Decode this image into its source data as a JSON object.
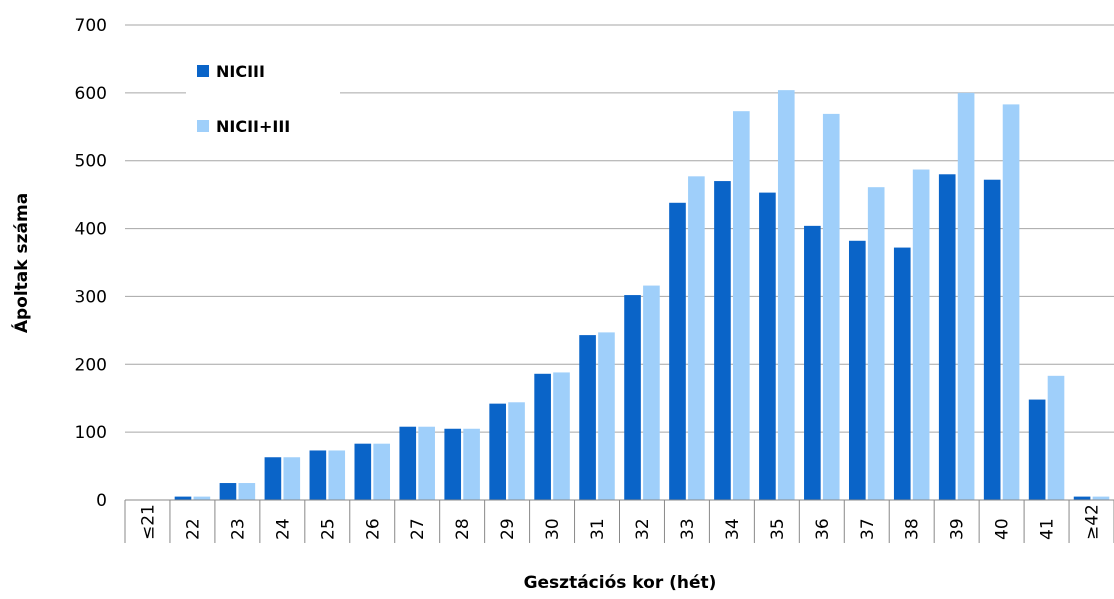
{
  "chart_data": {
    "type": "bar",
    "xlabel": "Gesztációs kor (hét)",
    "ylabel": "Ápoltak száma",
    "ylim": [
      0,
      700
    ],
    "yticks": [
      "0",
      "100",
      "200",
      "300",
      "400",
      "500",
      "600",
      "700"
    ],
    "grid": true,
    "legend_position": "top-left",
    "categories": [
      "≤21",
      "22",
      "23",
      "24",
      "25",
      "26",
      "27",
      "28",
      "29",
      "30",
      "31",
      "32",
      "33",
      "34",
      "35",
      "36",
      "37",
      "38",
      "39",
      "40",
      "41",
      "≥42"
    ],
    "series": [
      {
        "name": "NICIII",
        "color": "#0A64C8",
        "values": [
          0,
          5,
          25,
          63,
          73,
          83,
          108,
          105,
          142,
          186,
          243,
          302,
          438,
          470,
          453,
          404,
          382,
          372,
          480,
          472,
          148,
          5
        ]
      },
      {
        "name": "NICII+III",
        "color": "#9FCFFA",
        "values": [
          0,
          5,
          25,
          63,
          73,
          83,
          108,
          105,
          144,
          188,
          247,
          316,
          477,
          573,
          604,
          569,
          461,
          487,
          600,
          583,
          183,
          5
        ]
      }
    ]
  }
}
